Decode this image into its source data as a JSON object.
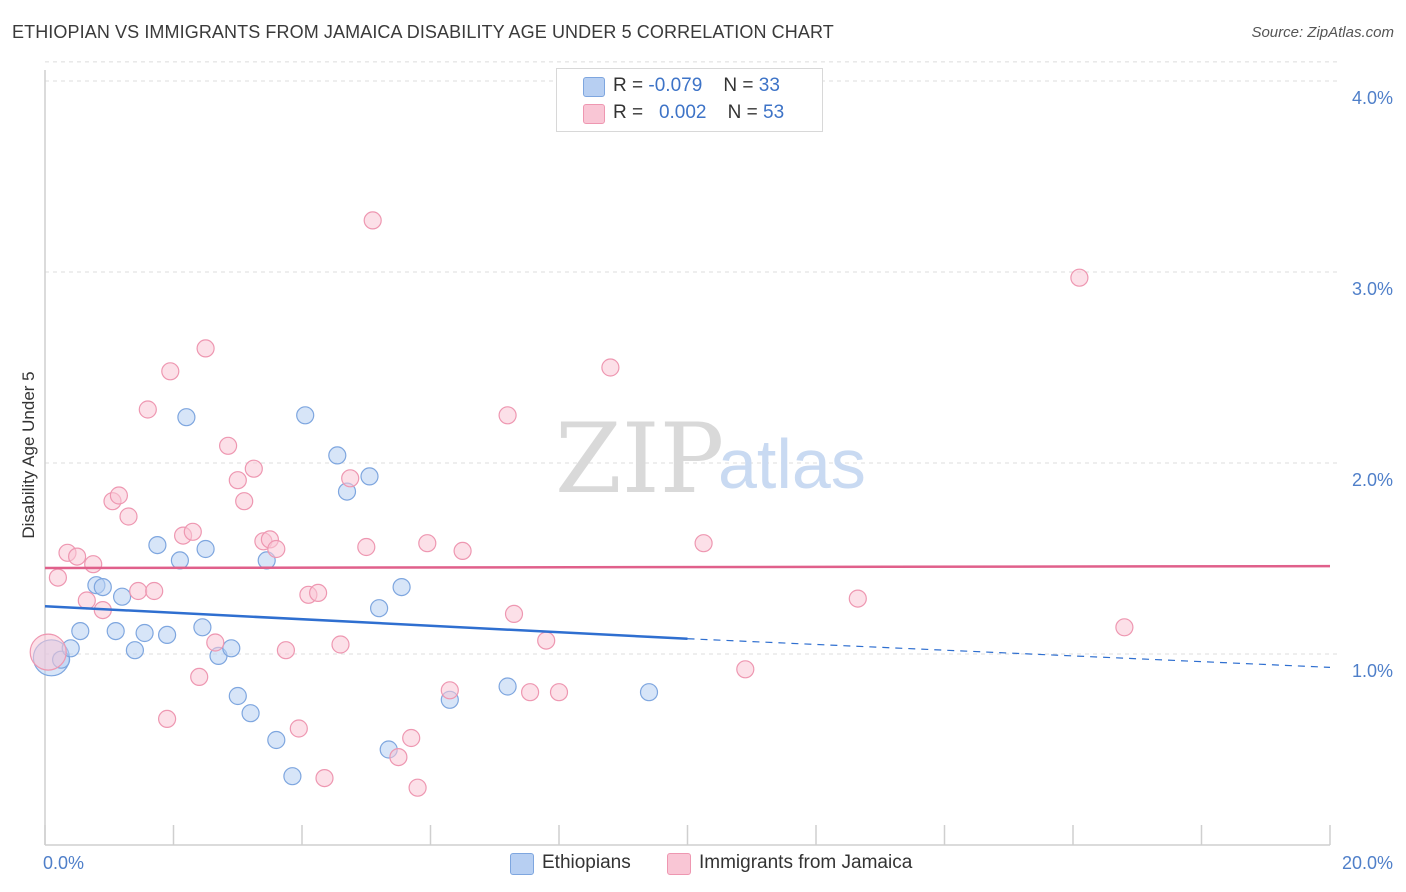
{
  "title": "ETHIOPIAN VS IMMIGRANTS FROM JAMAICA DISABILITY AGE UNDER 5 CORRELATION CHART",
  "source": "Source: ZipAtlas.com",
  "watermark": {
    "zip": "ZIP",
    "atlas": "atlas"
  },
  "legend": {
    "rows": [
      {
        "r_label": "R =",
        "r_value": "-0.079",
        "n_label": "N =",
        "n_value": "33",
        "color": "#b7cff2",
        "border": "#7ea6df"
      },
      {
        "r_label": "R =",
        "r_value": "0.002",
        "n_label": "N =",
        "n_value": "53",
        "color": "#f9c6d5",
        "border": "#ee97b1"
      }
    ]
  },
  "bottom_legend": [
    {
      "label": "Ethiopians",
      "color": "#b7cff2",
      "border": "#7ea6df"
    },
    {
      "label": "Immigrants from Jamaica",
      "color": "#f9c6d5",
      "border": "#ee97b1"
    }
  ],
  "chart_data": {
    "type": "scatter",
    "title": "ETHIOPIAN VS IMMIGRANTS FROM JAMAICA DISABILITY AGE UNDER 5 CORRELATION CHART",
    "xlabel": "",
    "ylabel": "Disability Age Under 5",
    "xlim": [
      0,
      20
    ],
    "ylim": [
      0,
      4.1
    ],
    "x_tick_labels": [
      "0.0%",
      "20.0%"
    ],
    "y_ticks": [
      1,
      2,
      3,
      4
    ],
    "y_tick_labels": [
      "1.0%",
      "2.0%",
      "3.0%",
      "4.0%"
    ],
    "grid": true,
    "legend_position": "top-center",
    "series": [
      {
        "name": "Ethiopians",
        "color": "#7ea6df",
        "fill": "#b7cff2",
        "line_color": "#2f6fd0",
        "trend": {
          "x": [
            0,
            10
          ],
          "y": [
            1.25,
            1.08
          ],
          "dashed_extension": [
            10,
            20
          ],
          "y_end": 0.93
        },
        "points": [
          [
            0.1,
            0.98
          ],
          [
            0.25,
            0.97
          ],
          [
            0.4,
            1.03
          ],
          [
            0.55,
            1.12
          ],
          [
            0.8,
            1.36
          ],
          [
            0.9,
            1.35
          ],
          [
            1.1,
            1.12
          ],
          [
            1.2,
            1.3
          ],
          [
            1.4,
            1.02
          ],
          [
            1.55,
            1.11
          ],
          [
            1.75,
            1.57
          ],
          [
            1.9,
            1.1
          ],
          [
            2.1,
            1.49
          ],
          [
            2.2,
            2.24
          ],
          [
            2.45,
            1.14
          ],
          [
            2.5,
            1.55
          ],
          [
            2.7,
            0.99
          ],
          [
            2.9,
            1.03
          ],
          [
            3.0,
            0.78
          ],
          [
            3.2,
            0.69
          ],
          [
            3.45,
            1.49
          ],
          [
            3.6,
            0.55
          ],
          [
            3.85,
            0.36
          ],
          [
            4.05,
            2.25
          ],
          [
            4.55,
            2.04
          ],
          [
            4.7,
            1.85
          ],
          [
            5.05,
            1.93
          ],
          [
            5.2,
            1.24
          ],
          [
            5.35,
            0.5
          ],
          [
            5.55,
            1.35
          ],
          [
            6.3,
            0.76
          ],
          [
            7.2,
            0.83
          ],
          [
            9.4,
            0.8
          ]
        ]
      },
      {
        "name": "Immigrants from Jamaica",
        "color": "#ee97b1",
        "fill": "#f9c6d5",
        "line_color": "#e0608b",
        "trend": {
          "x": [
            0,
            20
          ],
          "y": [
            1.45,
            1.46
          ]
        },
        "points": [
          [
            0.05,
            1.01
          ],
          [
            0.2,
            1.4
          ],
          [
            0.35,
            1.53
          ],
          [
            0.5,
            1.51
          ],
          [
            0.65,
            1.28
          ],
          [
            0.75,
            1.47
          ],
          [
            0.9,
            1.23
          ],
          [
            1.05,
            1.8
          ],
          [
            1.15,
            1.83
          ],
          [
            1.3,
            1.72
          ],
          [
            1.45,
            1.33
          ],
          [
            1.6,
            2.28
          ],
          [
            1.7,
            1.33
          ],
          [
            1.9,
            0.66
          ],
          [
            1.95,
            2.48
          ],
          [
            2.15,
            1.62
          ],
          [
            2.3,
            1.64
          ],
          [
            2.4,
            0.88
          ],
          [
            2.5,
            2.6
          ],
          [
            2.65,
            1.06
          ],
          [
            2.85,
            2.09
          ],
          [
            3.0,
            1.91
          ],
          [
            3.1,
            1.8
          ],
          [
            3.25,
            1.97
          ],
          [
            3.4,
            1.59
          ],
          [
            3.5,
            1.6
          ],
          [
            3.6,
            1.55
          ],
          [
            3.75,
            1.02
          ],
          [
            3.95,
            0.61
          ],
          [
            4.1,
            1.31
          ],
          [
            4.25,
            1.32
          ],
          [
            4.35,
            0.35
          ],
          [
            4.6,
            1.05
          ],
          [
            4.75,
            1.92
          ],
          [
            5.0,
            1.56
          ],
          [
            5.1,
            3.27
          ],
          [
            5.5,
            0.46
          ],
          [
            5.7,
            0.56
          ],
          [
            5.8,
            0.3
          ],
          [
            5.95,
            1.58
          ],
          [
            6.3,
            0.81
          ],
          [
            6.5,
            1.54
          ],
          [
            7.2,
            2.25
          ],
          [
            7.3,
            1.21
          ],
          [
            7.55,
            0.8
          ],
          [
            7.8,
            1.07
          ],
          [
            8.0,
            0.8
          ],
          [
            8.8,
            2.5
          ],
          [
            10.25,
            1.58
          ],
          [
            10.9,
            0.92
          ],
          [
            12.65,
            1.29
          ],
          [
            16.1,
            2.97
          ],
          [
            16.8,
            1.14
          ]
        ]
      }
    ]
  }
}
